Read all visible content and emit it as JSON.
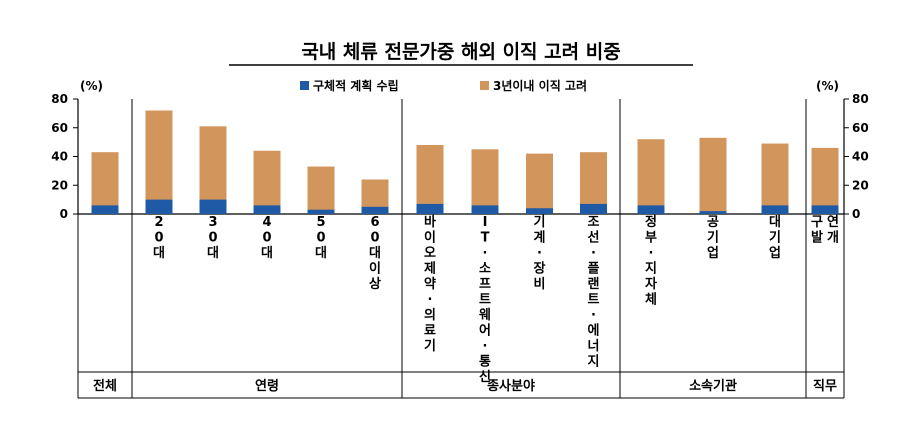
{
  "chart_data": {
    "type": "bar",
    "title": "국내 체류 전문가중 해외 이직 고려 비중",
    "y_unit_left": "(%)",
    "y_unit_right": "(%)",
    "ylim": [
      0,
      80
    ],
    "yticks": [
      0,
      20,
      40,
      60,
      80
    ],
    "grid": false,
    "legend_position": "top",
    "stacked": true,
    "colors": {
      "concrete": "#1f5aa6",
      "considering": "#d2955c"
    },
    "categories": [
      "",
      "20대",
      "30대",
      "40대",
      "50대",
      "60대이상",
      "바이오제약·의료기",
      "IT·소프트웨어·통신",
      "기계·장비",
      "조선·플랜트·에너지",
      "정부·지자체",
      "공기업",
      "대기업",
      "연개 구발"
    ],
    "category_groups": [
      {
        "label": "전체",
        "count": 1
      },
      {
        "label": "연령",
        "count": 5
      },
      {
        "label": "종사분야",
        "count": 4
      },
      {
        "label": "소속기관",
        "count": 3
      },
      {
        "label": "직무",
        "count": 1
      }
    ],
    "series": [
      {
        "name": "구체적 계획 수립",
        "values": [
          6,
          10,
          10,
          6,
          3,
          5,
          7,
          6,
          4,
          7,
          6,
          2,
          6,
          6
        ]
      },
      {
        "name": "3년이내 이직 고려",
        "values": [
          43,
          72,
          61,
          44,
          33,
          24,
          48,
          45,
          42,
          43,
          52,
          53,
          49,
          46
        ]
      }
    ]
  }
}
